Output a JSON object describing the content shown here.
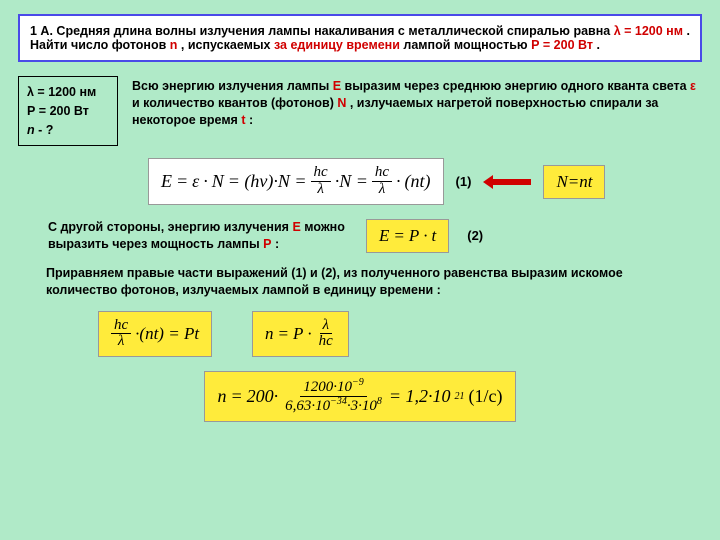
{
  "problem": {
    "num": "1 А.",
    "text1": "Cредняя длина волны излучения лампы накаливания с металлической спиралью равна ",
    "lambda_eq": "λ = 1200 нм",
    "text2": ". Найти число фотонов ",
    "n": "n",
    "text3": ", испускаемых ",
    "unit_time": "за единицу времени",
    "text4": " лампой мощностью ",
    "p_eq": "Р = 200 Вт",
    "dot": " ."
  },
  "given": {
    "l1": "λ = 1200 нм",
    "l2": "Р = 200 Вт",
    "l3a": "n",
    "l3b": " - ?"
  },
  "exp1": {
    "a": "Всю энергию излучения лампы ",
    "E": "Е",
    "b": " выразим через среднюю энергию одного кванта света ",
    "eps": "ε",
    "c": " и количество квантов (фотонов) ",
    "N": "N",
    "d": " , излучаемых нагретой поверхностью спирали за некоторое время ",
    "t": "t",
    "e": " :"
  },
  "f1": {
    "E": "E",
    "eq": " = ",
    "eps": "ε",
    "dot": "·",
    "N": "N",
    "op": " = (hν)·N = ",
    "hc": "hc",
    "lam": "λ",
    "dotN": "·N = ",
    "nt": "(nt)",
    "tag": "(1)",
    "Nnt": "N=nt"
  },
  "exp2": {
    "a": "С другой стороны, энергию излучения ",
    "E": "Е",
    "b": " можно выразить через мощность лампы ",
    "P": "Р",
    "c": " :"
  },
  "f2": {
    "E": "E",
    "eq": "=",
    "P": "P",
    "dot": "·",
    "t": "t",
    "tag": "(2)"
  },
  "exp3": "Приравняем правые части выражений (1) и (2), из полученного равенства выразим искомое количество фотонов, излучаемых лампой в единицу времени :",
  "f3": {
    "hc": "hc",
    "lam": "λ",
    "nt": "·(nt) = Pt",
    "n": "n",
    "eq": " = ",
    "P": "P",
    "dot": "·",
    "hcden": "hc"
  },
  "f4": {
    "n": "n",
    "eq": " = ",
    "p200": "200·",
    "num": "1200·10",
    "nexp": "−9",
    "d1": "6,63·10",
    "d1e": "−34",
    "d2": "·3·10",
    "d2e": "8",
    "res": " = 1,2·10",
    "rese": "21",
    "unit": "  (1/c)"
  }
}
